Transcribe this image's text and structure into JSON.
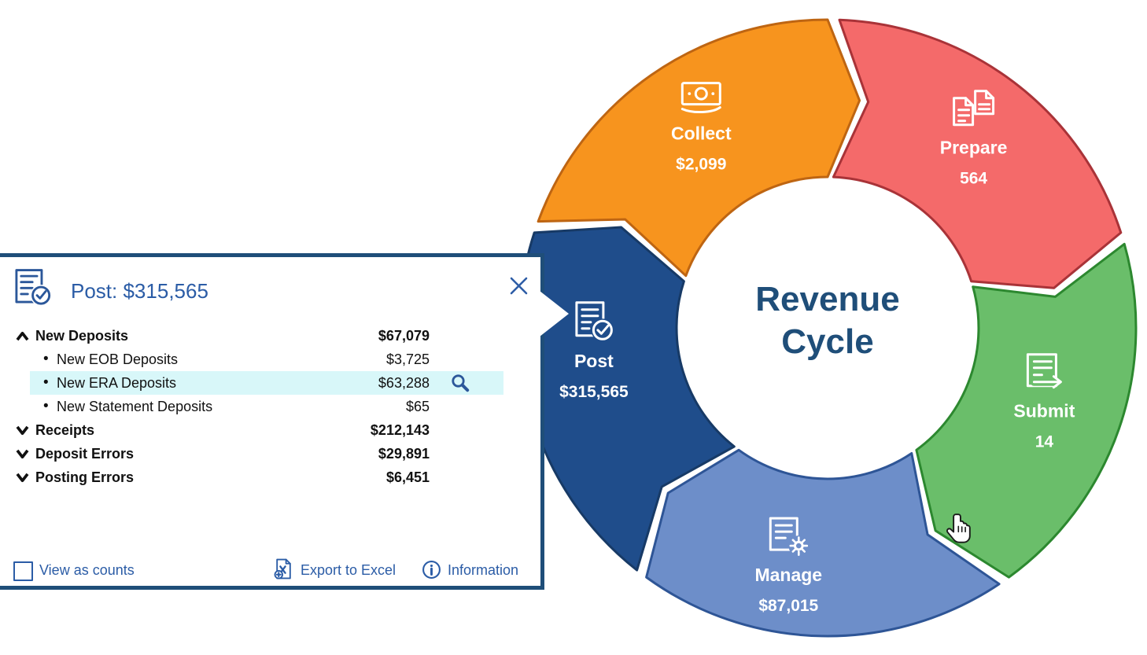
{
  "panel": {
    "title": "Post: $315,565",
    "rows": [
      {
        "label": "New Deposits",
        "value": "$67,079",
        "type": "parent",
        "state": "expanded"
      },
      {
        "label": "New EOB Deposits",
        "value": "$3,725",
        "type": "child"
      },
      {
        "label": "New ERA Deposits",
        "value": "$63,288",
        "type": "child",
        "highlighted": true
      },
      {
        "label": "New Statement Deposits",
        "value": "$65",
        "type": "child"
      },
      {
        "label": "Receipts",
        "value": "$212,143",
        "type": "parent",
        "state": "collapsed"
      },
      {
        "label": "Deposit Errors",
        "value": "$29,891",
        "type": "parent",
        "state": "collapsed"
      },
      {
        "label": "Posting Errors",
        "value": "$6,451",
        "type": "parent",
        "state": "collapsed"
      }
    ],
    "footer": {
      "view_as_counts": "View as counts",
      "export_to_excel": "Export to Excel",
      "information": "Information"
    },
    "colors": {
      "border": "#1F4E79",
      "accent_text": "#2B5CA6",
      "highlight": "#D8F7F9"
    }
  },
  "wheel": {
    "center_title": "Revenue Cycle",
    "center_color": "#1F4E79",
    "segments": [
      {
        "name": "Collect",
        "value": "$2,099",
        "fill": "#F7941E",
        "stroke": "#BE6512",
        "icon": "money"
      },
      {
        "name": "Prepare",
        "value": "564",
        "fill": "#F46A6A",
        "stroke": "#A93338",
        "icon": "documents"
      },
      {
        "name": "Submit",
        "value": "14",
        "fill": "#6ABE6A",
        "stroke": "#2C882F",
        "icon": "doc-arrow"
      },
      {
        "name": "Manage",
        "value": "$87,015",
        "fill": "#6D8EC9",
        "stroke": "#2E5596",
        "icon": "doc-gear"
      },
      {
        "name": "Post",
        "value": "$315,565",
        "fill": "#1F4D8B",
        "stroke": "#173A66",
        "icon": "doc-check"
      }
    ]
  }
}
